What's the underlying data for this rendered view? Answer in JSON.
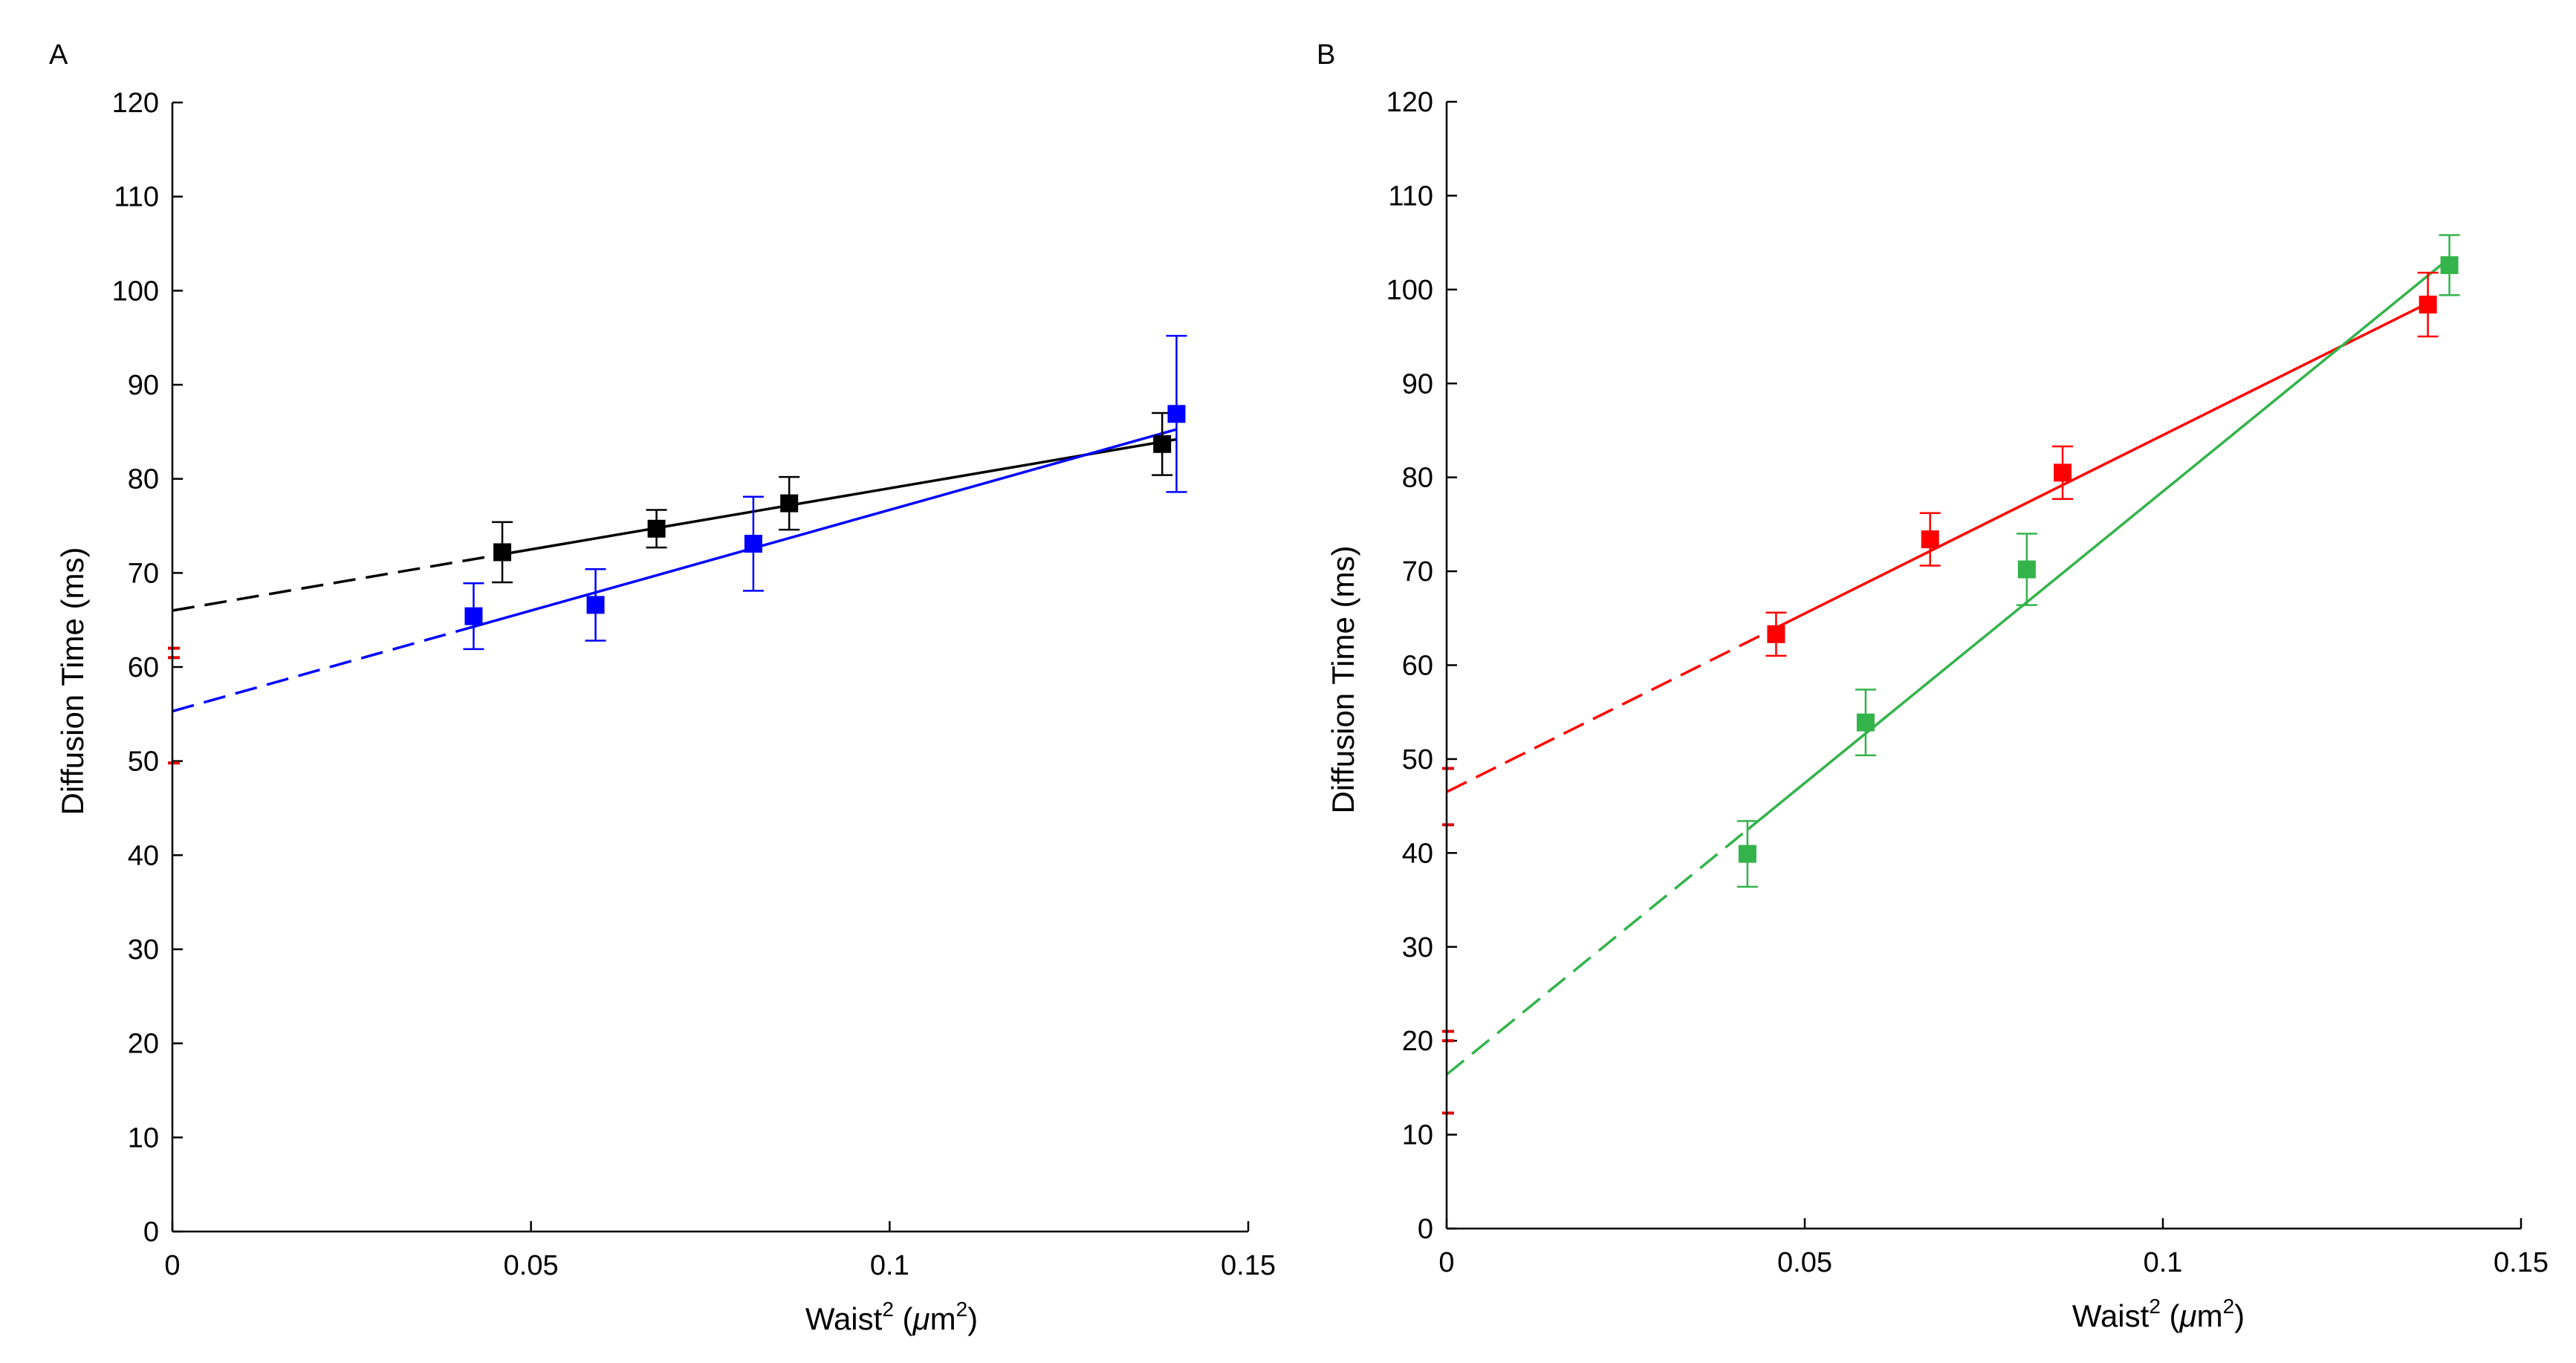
{
  "chart_data": [
    {
      "type": "scatter",
      "panel_label": "A",
      "xlabel": "Waist",
      "xlabel_sup": "2",
      "xlabel_unit_open": " (",
      "xlabel_unit_mu": "μ",
      "xlabel_unit_m": "m",
      "xlabel_unit_sup": "2",
      "xlabel_unit_close": ")",
      "ylabel": "Diffusion Time (ms)",
      "xlim": [
        0,
        0.15
      ],
      "ylim": [
        0,
        120
      ],
      "xticks": [
        0,
        0.05,
        0.1,
        0.15
      ],
      "xtick_labels": [
        "0",
        "0.05",
        "0.1",
        "0.15"
      ],
      "yticks": [
        0,
        10,
        20,
        30,
        40,
        50,
        60,
        70,
        80,
        90,
        100,
        110,
        120
      ],
      "ytick_labels": [
        "0",
        "10",
        "20",
        "30",
        "40",
        "50",
        "60",
        "70",
        "80",
        "90",
        "100",
        "110",
        "120"
      ],
      "series": [
        {
          "name": "black",
          "color": "#000000",
          "x": [
            0.046,
            0.0675,
            0.086,
            0.138
          ],
          "y": [
            72.2,
            74.7,
            77.4,
            83.7
          ],
          "err": [
            3.2,
            2.0,
            2.8,
            3.3
          ],
          "fit": {
            "intercept": 66.0,
            "slope": 130.0,
            "solid_from": 0.046,
            "solid_to": 0.14
          }
        },
        {
          "name": "blue",
          "color": "#0000ff",
          "x": [
            0.042,
            0.059,
            0.081,
            0.14
          ],
          "y": [
            65.4,
            66.6,
            73.1,
            86.9
          ],
          "err": [
            3.5,
            3.8,
            5.0,
            8.3
          ],
          "fit": {
            "intercept": 55.3,
            "slope": 214.0,
            "solid_from": 0.042,
            "solid_to": 0.14
          }
        }
      ],
      "intercept_marks": [
        {
          "y": 61.0,
          "color": "#e00000"
        },
        {
          "y": 62.0,
          "color": "#e00000"
        },
        {
          "y": 49.8,
          "color": "#e00000"
        }
      ]
    },
    {
      "type": "scatter",
      "panel_label": "B",
      "xlabel": "Waist",
      "xlabel_sup": "2",
      "xlabel_unit_open": " (",
      "xlabel_unit_mu": "μ",
      "xlabel_unit_m": "m",
      "xlabel_unit_sup": "2",
      "xlabel_unit_close": ")",
      "ylabel": "Diffusion Time (ms)",
      "xlim": [
        0,
        0.15
      ],
      "ylim": [
        0,
        120
      ],
      "xticks": [
        0,
        0.05,
        0.1,
        0.15
      ],
      "xtick_labels": [
        "0",
        "0.05",
        "0.1",
        "0.15"
      ],
      "yticks": [
        0,
        10,
        20,
        30,
        40,
        50,
        60,
        70,
        80,
        90,
        100,
        110,
        120
      ],
      "ytick_labels": [
        "0",
        "10",
        "20",
        "30",
        "40",
        "50",
        "60",
        "70",
        "80",
        "90",
        "100",
        "110",
        "120"
      ],
      "series": [
        {
          "name": "red",
          "color": "#ff0000",
          "x": [
            0.046,
            0.0675,
            0.086,
            0.137
          ],
          "y": [
            63.3,
            73.4,
            80.5,
            98.4
          ],
          "err": [
            2.3,
            2.8,
            2.8,
            3.4
          ],
          "fit": {
            "intercept": 46.5,
            "slope": 380.0,
            "solid_from": 0.046,
            "solid_to": 0.137
          }
        },
        {
          "name": "green",
          "color": "#33b34a",
          "x": [
            0.042,
            0.0585,
            0.081,
            0.14
          ],
          "y": [
            39.9,
            53.9,
            70.2,
            102.6
          ],
          "err": [
            3.5,
            3.5,
            3.8,
            3.2
          ],
          "fit": {
            "intercept": 16.4,
            "slope": 621.0,
            "solid_from": 0.042,
            "solid_to": 0.14
          }
        }
      ],
      "intercept_marks": [
        {
          "y": 49.0,
          "color": "#e00000"
        },
        {
          "y": 43.0,
          "color": "#e00000"
        },
        {
          "y": 20.0,
          "color": "#e00000"
        },
        {
          "y": 21.0,
          "color": "#e00000"
        },
        {
          "y": 12.3,
          "color": "#e00000"
        }
      ]
    }
  ]
}
